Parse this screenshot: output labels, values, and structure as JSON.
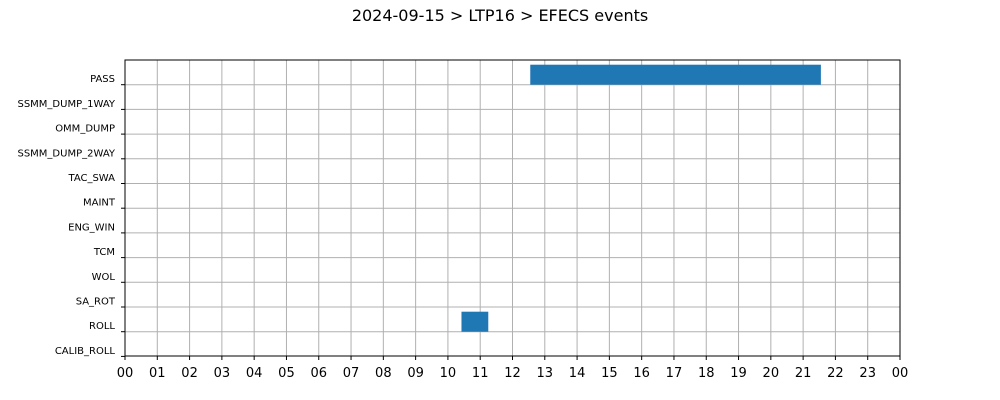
{
  "chart_data": {
    "type": "bar",
    "orientation": "horizontal-timeline",
    "title": "2024-09-15 > LTP16 > EFECS events",
    "xlabel": "",
    "ylabel": "",
    "categories": [
      "PASS",
      "SSMM_DUMP_1WAY",
      "OMM_DUMP",
      "SSMM_DUMP_2WAY",
      "TAC_SWA",
      "MAINT",
      "ENG_WIN",
      "TCM",
      "WOL",
      "SA_ROT",
      "ROLL",
      "CALIB_ROLL"
    ],
    "x_tick_labels": [
      "00",
      "01",
      "02",
      "03",
      "04",
      "05",
      "06",
      "07",
      "08",
      "09",
      "10",
      "11",
      "12",
      "13",
      "14",
      "15",
      "16",
      "17",
      "18",
      "19",
      "20",
      "21",
      "22",
      "23",
      "00"
    ],
    "xlim": [
      0,
      24
    ],
    "grid": true,
    "bar_color": "#1f77b4",
    "events": [
      {
        "category": "PASS",
        "start": 12.55,
        "end": 21.55
      },
      {
        "category": "ROLL",
        "start": 10.42,
        "end": 11.25
      }
    ]
  }
}
